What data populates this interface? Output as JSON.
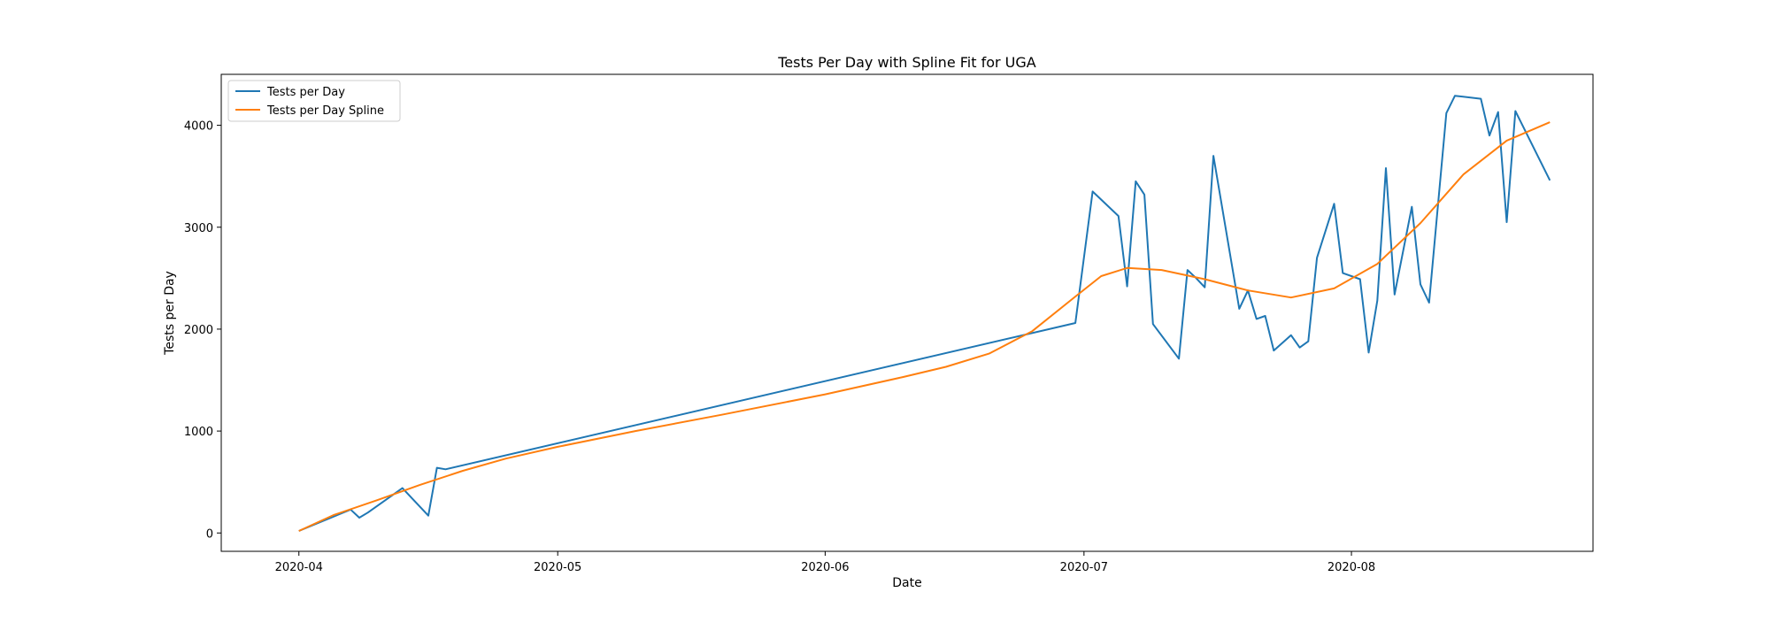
{
  "chart_data": {
    "type": "line",
    "title": "Tests Per Day with Spline Fit for UGA",
    "xlabel": "Date",
    "ylabel": "Tests per Day",
    "xlim": [
      "2020-03-23",
      "2020-08-29"
    ],
    "ylim": [
      -180,
      4500
    ],
    "x_ticks": [
      "2020-04",
      "2020-05",
      "2020-06",
      "2020-07",
      "2020-08"
    ],
    "y_ticks": [
      0,
      1000,
      2000,
      3000,
      4000
    ],
    "grid": false,
    "legend_position": "top-left",
    "series": [
      {
        "name": "Tests per Day",
        "color": "#1f77b4",
        "points": [
          [
            "2020-04-01",
            20
          ],
          [
            "2020-04-07",
            230
          ],
          [
            "2020-04-08",
            150
          ],
          [
            "2020-04-09",
            200
          ],
          [
            "2020-04-13",
            440
          ],
          [
            "2020-04-16",
            170
          ],
          [
            "2020-04-17",
            640
          ],
          [
            "2020-04-18",
            625
          ],
          [
            "2020-06-30",
            2060
          ],
          [
            "2020-07-02",
            3350
          ],
          [
            "2020-07-05",
            3110
          ],
          [
            "2020-07-06",
            2420
          ],
          [
            "2020-07-07",
            3450
          ],
          [
            "2020-07-08",
            3320
          ],
          [
            "2020-07-09",
            2050
          ],
          [
            "2020-07-12",
            1710
          ],
          [
            "2020-07-13",
            2580
          ],
          [
            "2020-07-14",
            2500
          ],
          [
            "2020-07-15",
            2410
          ],
          [
            "2020-07-16",
            3700
          ],
          [
            "2020-07-19",
            2200
          ],
          [
            "2020-07-20",
            2380
          ],
          [
            "2020-07-21",
            2100
          ],
          [
            "2020-07-22",
            2130
          ],
          [
            "2020-07-23",
            1790
          ],
          [
            "2020-07-25",
            1940
          ],
          [
            "2020-07-26",
            1820
          ],
          [
            "2020-07-27",
            1880
          ],
          [
            "2020-07-28",
            2700
          ],
          [
            "2020-07-30",
            3230
          ],
          [
            "2020-07-31",
            2550
          ],
          [
            "2020-08-02",
            2490
          ],
          [
            "2020-08-03",
            1770
          ],
          [
            "2020-08-04",
            2280
          ],
          [
            "2020-08-05",
            3580
          ],
          [
            "2020-08-06",
            2340
          ],
          [
            "2020-08-08",
            3200
          ],
          [
            "2020-08-09",
            2440
          ],
          [
            "2020-08-10",
            2260
          ],
          [
            "2020-08-12",
            4120
          ],
          [
            "2020-08-13",
            4290
          ],
          [
            "2020-08-16",
            4260
          ],
          [
            "2020-08-17",
            3900
          ],
          [
            "2020-08-18",
            4130
          ],
          [
            "2020-08-19",
            3050
          ],
          [
            "2020-08-20",
            4140
          ],
          [
            "2020-08-24",
            3460
          ]
        ]
      },
      {
        "name": "Tests per Day Spline",
        "color": "#ff7f0e",
        "points": [
          [
            "2020-04-01",
            20
          ],
          [
            "2020-04-05",
            175
          ],
          [
            "2020-04-10",
            320
          ],
          [
            "2020-04-15",
            470
          ],
          [
            "2020-04-20",
            610
          ],
          [
            "2020-04-25",
            730
          ],
          [
            "2020-05-01",
            845
          ],
          [
            "2020-05-10",
            1000
          ],
          [
            "2020-05-20",
            1160
          ],
          [
            "2020-06-01",
            1360
          ],
          [
            "2020-06-10",
            1530
          ],
          [
            "2020-06-15",
            1630
          ],
          [
            "2020-06-20",
            1760
          ],
          [
            "2020-06-25",
            1980
          ],
          [
            "2020-06-30",
            2320
          ],
          [
            "2020-07-03",
            2520
          ],
          [
            "2020-07-06",
            2600
          ],
          [
            "2020-07-10",
            2580
          ],
          [
            "2020-07-15",
            2490
          ],
          [
            "2020-07-20",
            2380
          ],
          [
            "2020-07-25",
            2310
          ],
          [
            "2020-07-30",
            2400
          ],
          [
            "2020-08-04",
            2640
          ],
          [
            "2020-08-09",
            3040
          ],
          [
            "2020-08-14",
            3520
          ],
          [
            "2020-08-19",
            3850
          ],
          [
            "2020-08-24",
            4030
          ]
        ]
      }
    ]
  }
}
